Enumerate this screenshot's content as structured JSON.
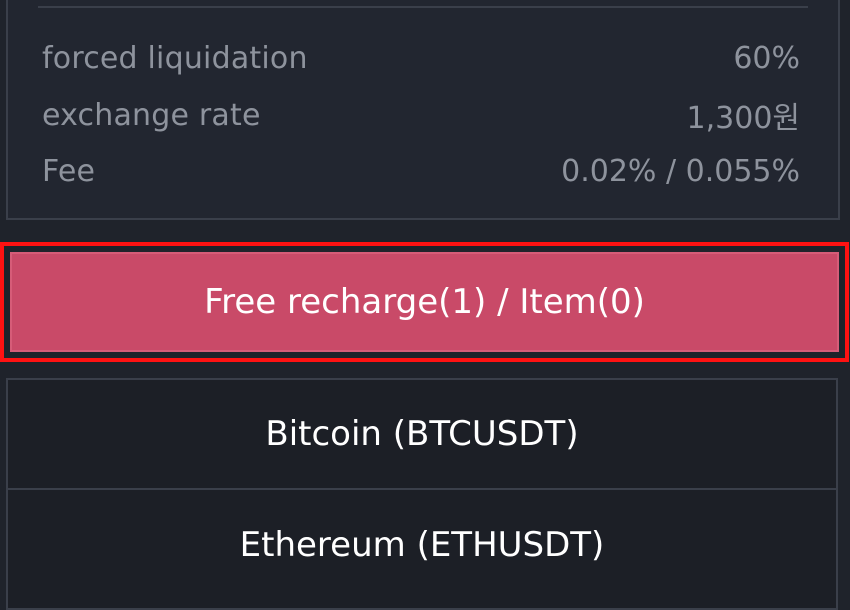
{
  "info": {
    "rows": [
      {
        "label": "forced liquidation",
        "value": "60%"
      },
      {
        "label": "exchange rate",
        "value": "1,300원"
      },
      {
        "label": "Fee",
        "value": "0.02% / 0.055%"
      }
    ]
  },
  "recharge": {
    "label": "Free recharge(1) / Item(0)",
    "highlight_color": "#ff1212",
    "button_color": "#c94a68"
  },
  "coins": {
    "items": [
      {
        "label": "Bitcoin (BTCUSDT)"
      },
      {
        "label": "Ethereum (ETHUSDT)"
      }
    ]
  }
}
